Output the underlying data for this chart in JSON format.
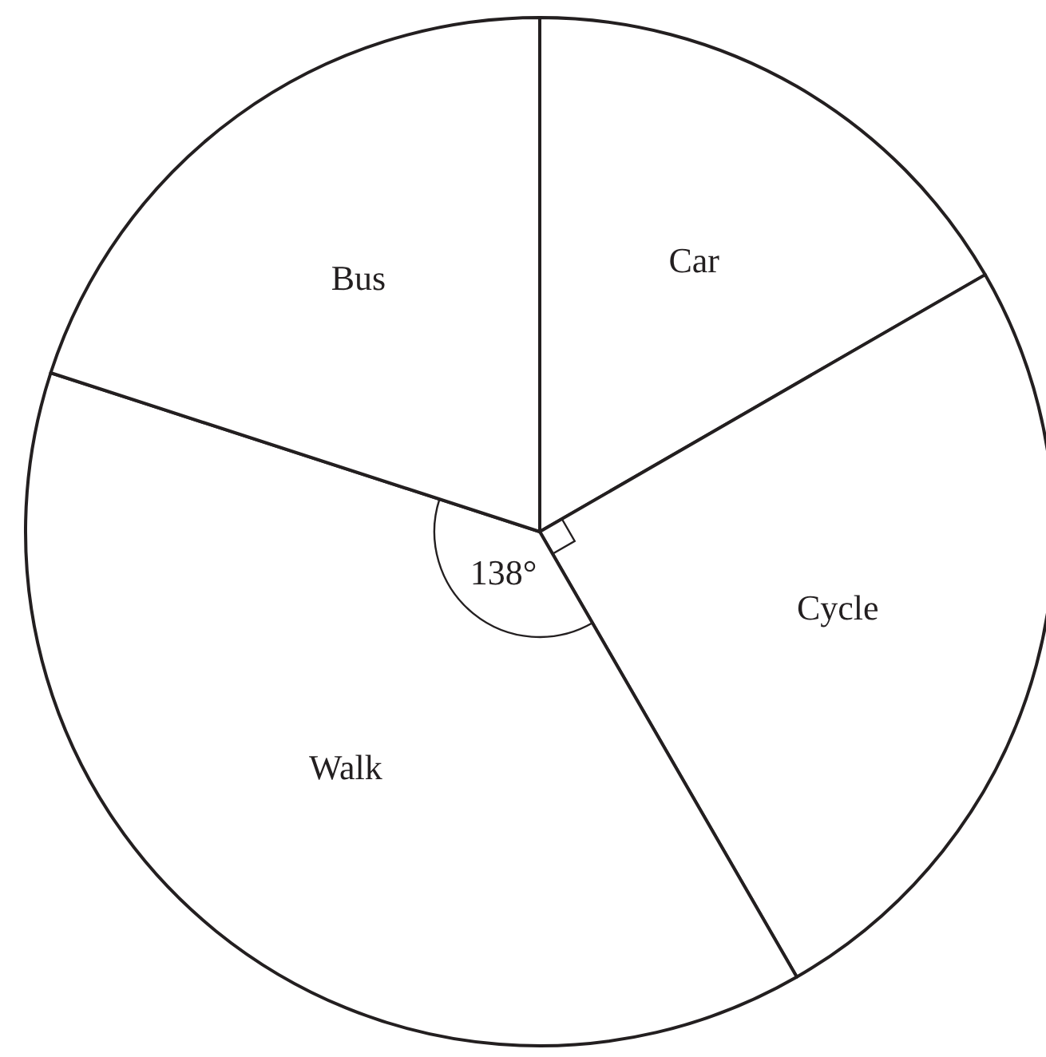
{
  "chart_data": {
    "type": "pie",
    "categories": [
      "Car",
      "Cycle",
      "Walk",
      "Bus"
    ],
    "values": [
      16.67,
      25,
      38.33,
      20
    ],
    "colors": [
      "#ffffff",
      "#ffffff",
      "#ffffff",
      "#ffffff"
    ],
    "annotations": [
      {
        "text": "138°",
        "x": "Walk"
      }
    ]
  }
}
